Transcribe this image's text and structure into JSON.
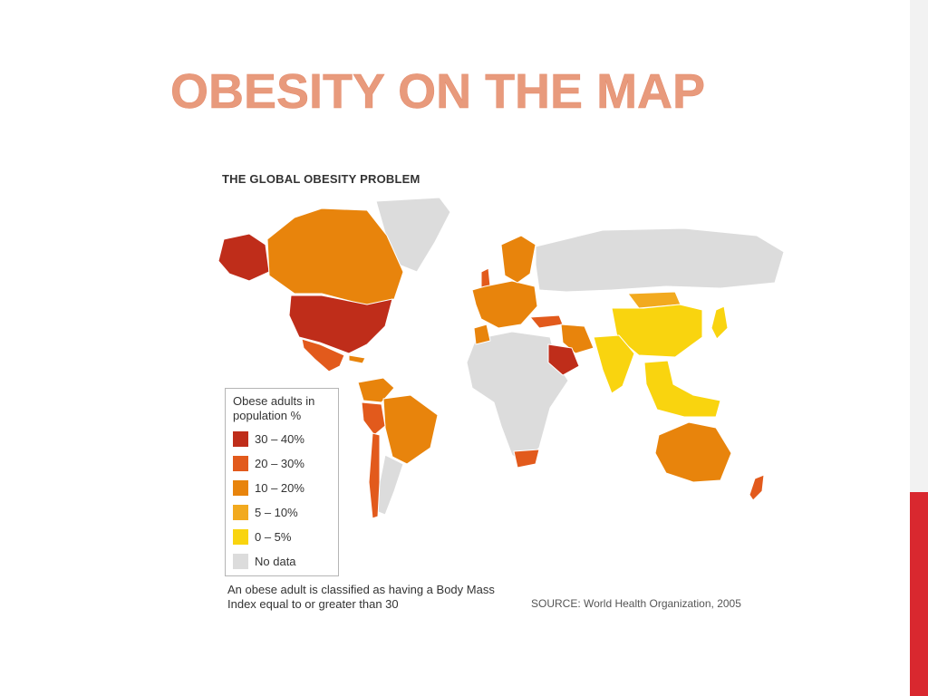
{
  "slide": {
    "title": "OBESITY ON THE MAP",
    "title_color": "#e89a7c",
    "edge_color": "#f2f2f2",
    "accent_color": "#d9282f"
  },
  "map": {
    "title": "THE GLOBAL OBESITY PROBLEM",
    "legend": {
      "title": "Obese adults in population %",
      "items": [
        {
          "label": "30 – 40%",
          "color": "#bf2d1a"
        },
        {
          "label": "20 – 30%",
          "color": "#e25a1c"
        },
        {
          "label": "10 – 20%",
          "color": "#e8840c"
        },
        {
          "label": "5 – 10%",
          "color": "#f2aa1f"
        },
        {
          "label": "0 – 5%",
          "color": "#f9d40f"
        },
        {
          "label": "No data",
          "color": "#dcdcdc"
        }
      ]
    },
    "footnote": "An obese adult is classified as having a Body Mass Index equal to or greater than 30",
    "source": "SOURCE: World Health Organization, 2005",
    "regions": [
      {
        "name": "Alaska",
        "category": "30 – 40%"
      },
      {
        "name": "Canada",
        "category": "10 – 20%"
      },
      {
        "name": "Greenland",
        "category": "No data"
      },
      {
        "name": "United States",
        "category": "30 – 40%"
      },
      {
        "name": "Mexico",
        "category": "20 – 30%"
      },
      {
        "name": "Cuba",
        "category": "10 – 20%"
      },
      {
        "name": "Colombia / Venezuela",
        "category": "10 – 20%"
      },
      {
        "name": "Brazil",
        "category": "10 – 20%"
      },
      {
        "name": "Peru",
        "category": "20 – 30%"
      },
      {
        "name": "Argentina",
        "category": "No data"
      },
      {
        "name": "Chile",
        "category": "20 – 30%"
      },
      {
        "name": "United Kingdom",
        "category": "20 – 30%"
      },
      {
        "name": "Europe",
        "category": "10 – 20%"
      },
      {
        "name": "Scandinavia",
        "category": "10 – 20%"
      },
      {
        "name": "Russia",
        "category": "No data"
      },
      {
        "name": "Turkey",
        "category": "20 – 30%"
      },
      {
        "name": "Iran",
        "category": "10 – 20%"
      },
      {
        "name": "Saudi Arabia",
        "category": "30 – 40%"
      },
      {
        "name": "Africa",
        "category": "No data"
      },
      {
        "name": "Morocco",
        "category": "10 – 20%"
      },
      {
        "name": "South Africa",
        "category": "20 – 30%"
      },
      {
        "name": "Mongolia",
        "category": "5 – 10%"
      },
      {
        "name": "China",
        "category": "0 – 5%"
      },
      {
        "name": "India",
        "category": "0 – 5%"
      },
      {
        "name": "Japan",
        "category": "0 – 5%"
      },
      {
        "name": "Southeast Asia",
        "category": "0 – 5%"
      },
      {
        "name": "Australia",
        "category": "10 – 20%"
      },
      {
        "name": "New Zealand",
        "category": "20 – 30%"
      }
    ]
  }
}
